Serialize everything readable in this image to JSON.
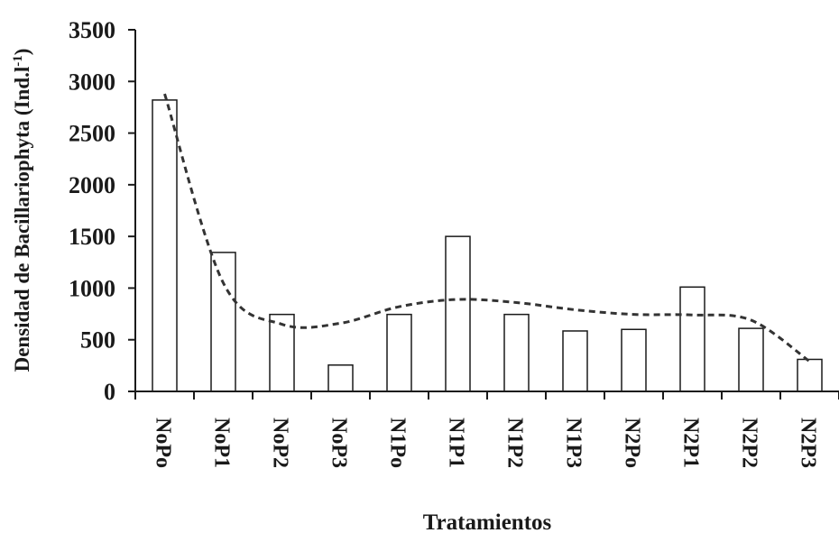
{
  "chart_data": {
    "type": "bar",
    "title": "",
    "xlabel": "Tratamientos",
    "ylabel": "Densidad de Bacillariophyta (Ind.l",
    "ylabel_superscript": "-1",
    "ylabel_suffix": ")",
    "categories": [
      "NoPo",
      "NoP1",
      "NoP2",
      "NoP3",
      "N1Po",
      "N1P1",
      "N1P2",
      "N1P3",
      "N2Po",
      "N2P1",
      "N2P2",
      "N2P3"
    ],
    "values": [
      2820,
      1345,
      745,
      255,
      745,
      1500,
      745,
      585,
      600,
      1010,
      610,
      310
    ],
    "ylim": [
      0,
      3500
    ],
    "yticks": [
      0,
      500,
      1000,
      1500,
      2000,
      2500,
      3000,
      3500
    ],
    "trendline": {
      "style": "dashed",
      "shape": "polynomial",
      "points": [
        2880,
        1050,
        650,
        660,
        820,
        890,
        860,
        790,
        745,
        740,
        690,
        290
      ]
    },
    "grid": false,
    "legend": "none",
    "colors": {
      "bar_fill": "#ffffff",
      "bar_stroke": "#1a1a1a",
      "axis": "#1a1a1a",
      "trend": "#333333"
    }
  }
}
